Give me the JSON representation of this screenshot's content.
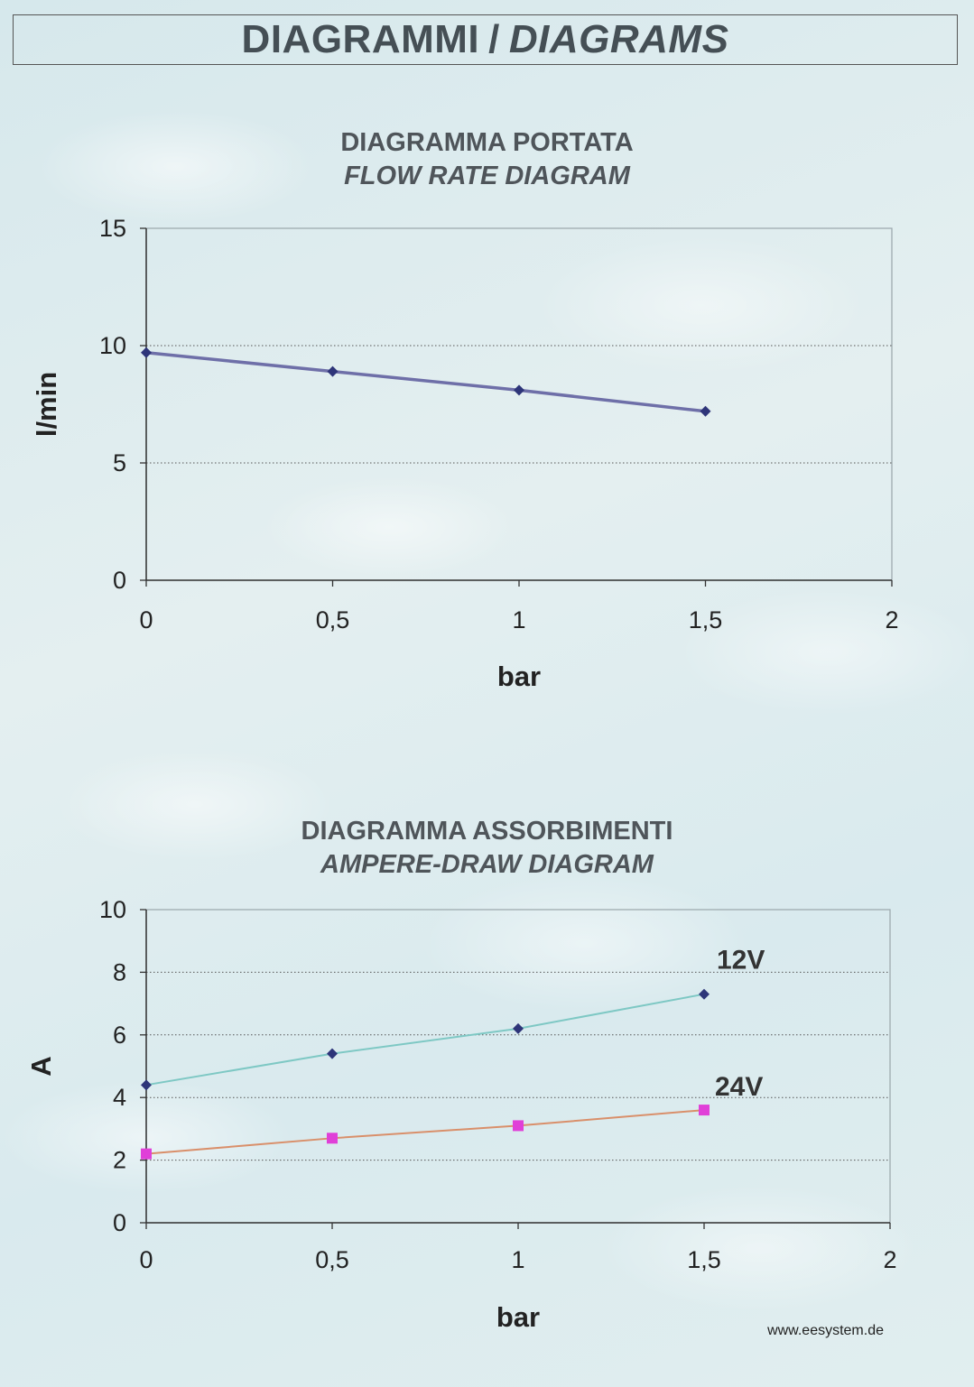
{
  "header": {
    "title_it": "DIAGRAMMI",
    "separator": "/",
    "title_en": "DIAGRAMS"
  },
  "footer": {
    "website": "www.eesystem.de"
  },
  "chart_data": [
    {
      "type": "line",
      "title": "DIAGRAMMA PORTATA",
      "subtitle": "FLOW RATE DIAGRAM",
      "xlabel": "bar",
      "ylabel": "l/min",
      "xlim": [
        0,
        2
      ],
      "ylim": [
        0,
        15
      ],
      "xticks": [
        "0",
        "0,5",
        "1",
        "1,5",
        "2"
      ],
      "yticks": [
        "0",
        "5",
        "10",
        "15"
      ],
      "grid": "horizontal dotted",
      "series": [
        {
          "color": "#6e6fa8",
          "marker_color": "#2e3579",
          "marker": "diamond",
          "x": [
            0,
            0.5,
            1,
            1.5
          ],
          "y": [
            9.7,
            8.9,
            8.1,
            7.2
          ]
        }
      ]
    },
    {
      "type": "line",
      "title": "DIAGRAMMA ASSORBIMENTI",
      "subtitle": "AMPERE-DRAW DIAGRAM",
      "xlabel": "bar",
      "ylabel": "A",
      "xlim": [
        0,
        2
      ],
      "ylim": [
        0,
        10
      ],
      "xticks": [
        "0",
        "0,5",
        "1",
        "1,5",
        "2"
      ],
      "yticks": [
        "0",
        "2",
        "4",
        "6",
        "8",
        "10"
      ],
      "grid": "horizontal dotted",
      "series": [
        {
          "name": "12V",
          "color": "#7ec8c4",
          "marker_color": "#2e3579",
          "marker": "diamond",
          "x": [
            0,
            0.5,
            1,
            1.5
          ],
          "y": [
            4.4,
            5.4,
            6.2,
            7.3
          ]
        },
        {
          "name": "24V",
          "color": "#d98f6a",
          "marker_color": "#e040d8",
          "marker": "square",
          "x": [
            0,
            0.5,
            1,
            1.5
          ],
          "y": [
            2.2,
            2.7,
            3.1,
            3.6
          ]
        }
      ]
    }
  ]
}
